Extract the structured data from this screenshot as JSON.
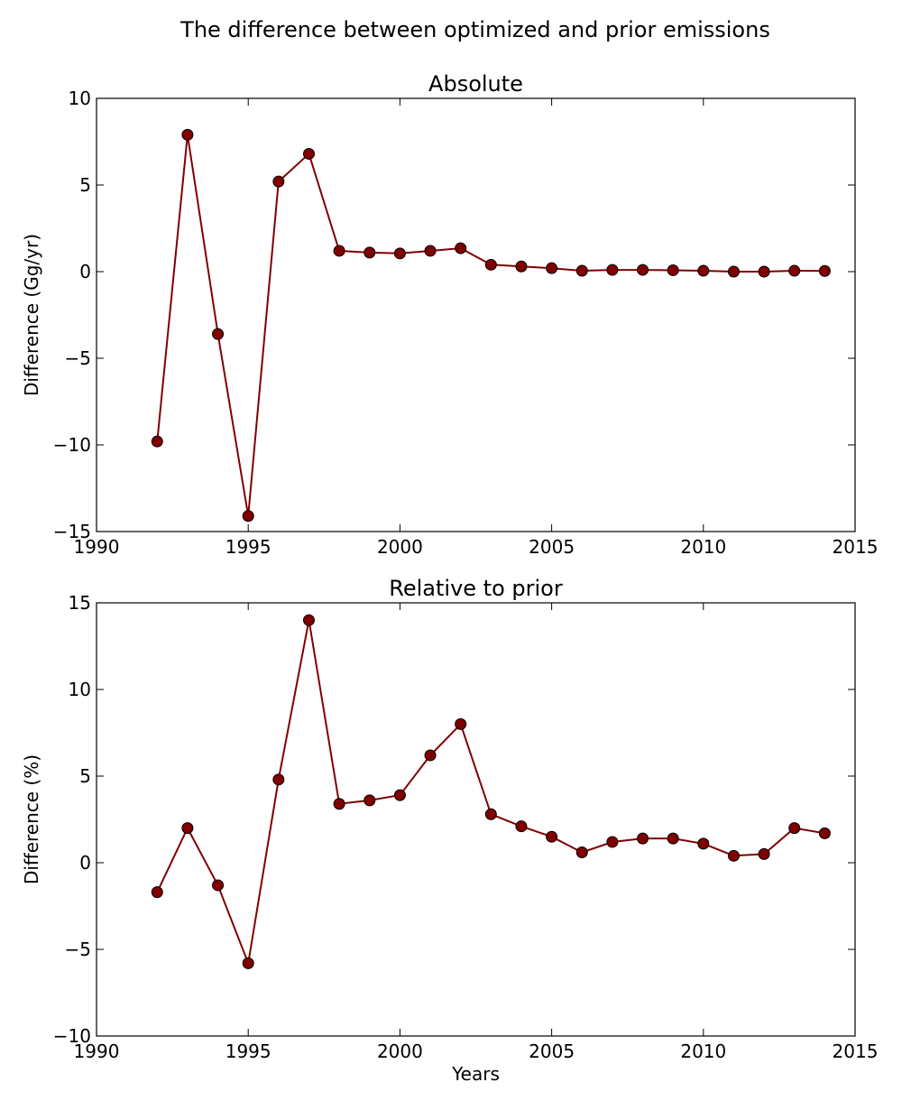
{
  "figure": {
    "title": "The difference between optimized and prior emissions"
  },
  "chart_data": [
    {
      "type": "line",
      "title": "Absolute",
      "xlabel": "",
      "ylabel": "Difference (Gg/yr)",
      "xlim": [
        1990,
        2015
      ],
      "ylim": [
        -15,
        10
      ],
      "xticks": [
        1990,
        1995,
        2000,
        2005,
        2010,
        2015
      ],
      "yticks": [
        -15,
        -10,
        -5,
        0,
        5,
        10
      ],
      "grid": false,
      "line_color": "#800000",
      "marker": "circle",
      "series": [
        {
          "x": [
            1992,
            1993,
            1994,
            1995,
            1996,
            1997,
            1998,
            1999,
            2000,
            2001,
            2002,
            2003,
            2004,
            2005,
            2006,
            2007,
            2008,
            2009,
            2010,
            2011,
            2012,
            2013,
            2014
          ],
          "y": [
            -9.8,
            7.9,
            -3.6,
            -14.1,
            5.2,
            6.8,
            1.2,
            1.1,
            1.05,
            1.2,
            1.35,
            0.4,
            0.3,
            0.2,
            0.05,
            0.1,
            0.1,
            0.08,
            0.05,
            0.0,
            0.0,
            0.05,
            0.04
          ]
        }
      ]
    },
    {
      "type": "line",
      "title": "Relative to prior",
      "xlabel": "Years",
      "ylabel": "Difference (%)",
      "xlim": [
        1990,
        2015
      ],
      "ylim": [
        -10,
        15
      ],
      "xticks": [
        1990,
        1995,
        2000,
        2005,
        2010,
        2015
      ],
      "yticks": [
        -10,
        -5,
        0,
        5,
        10,
        15
      ],
      "grid": false,
      "line_color": "#800000",
      "marker": "circle",
      "series": [
        {
          "x": [
            1992,
            1993,
            1994,
            1995,
            1996,
            1997,
            1998,
            1999,
            2000,
            2001,
            2002,
            2003,
            2004,
            2005,
            2006,
            2007,
            2008,
            2009,
            2010,
            2011,
            2012,
            2013,
            2014
          ],
          "y": [
            -1.7,
            2.0,
            -1.3,
            -5.8,
            4.8,
            14.0,
            3.4,
            3.6,
            3.9,
            6.2,
            8.0,
            2.8,
            2.1,
            1.5,
            0.6,
            1.2,
            1.4,
            1.4,
            1.1,
            0.4,
            0.5,
            2.0,
            1.7
          ]
        }
      ]
    }
  ]
}
